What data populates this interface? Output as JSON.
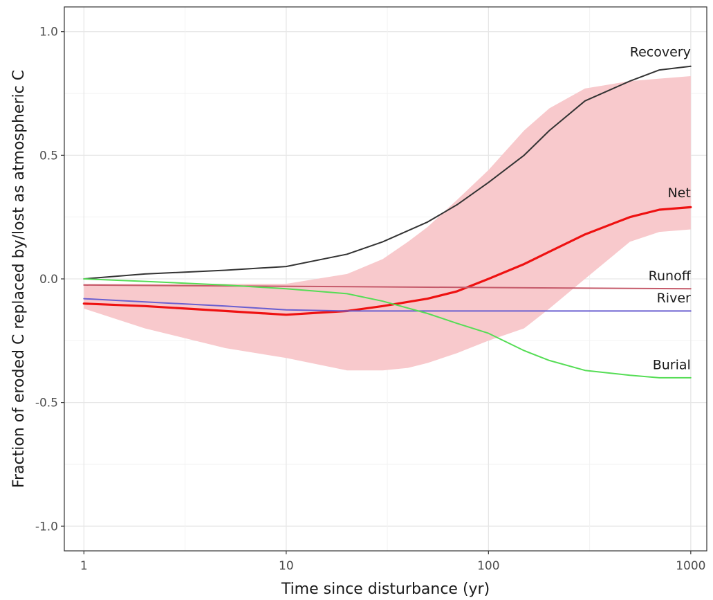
{
  "chart_data": {
    "type": "line",
    "title": "",
    "xlabel": "Time since disturbance (yr)",
    "ylabel": "Fraction of eroded C replaced by/lost as atmospheric C",
    "x_scale": "log10",
    "xlim": [
      0.8,
      1200
    ],
    "ylim": [
      -1.1,
      1.1
    ],
    "x_ticks": [
      1,
      10,
      100,
      1000
    ],
    "x_tick_labels": [
      "1",
      "10",
      "100",
      "1000"
    ],
    "y_ticks": [
      -1.0,
      -0.5,
      0.0,
      0.5,
      1.0
    ],
    "y_tick_labels": [
      "-1.0",
      "-0.5",
      "0.0",
      "0.5",
      "1.0"
    ],
    "grid": true,
    "legend": "none",
    "band": {
      "color": "#f8c9cc",
      "x": [
        1,
        2,
        5,
        10,
        20,
        30,
        40,
        50,
        70,
        100,
        150,
        200,
        300,
        500,
        700,
        1000
      ],
      "upper": [
        -0.02,
        -0.02,
        -0.02,
        -0.02,
        0.02,
        0.08,
        0.15,
        0.21,
        0.32,
        0.44,
        0.6,
        0.69,
        0.77,
        0.8,
        0.81,
        0.82
      ],
      "lower": [
        -0.12,
        -0.2,
        -0.28,
        -0.32,
        -0.37,
        -0.37,
        -0.36,
        -0.34,
        -0.3,
        -0.25,
        -0.2,
        -0.12,
        0.0,
        0.15,
        0.19,
        0.2
      ]
    },
    "series": [
      {
        "name": "Recovery",
        "color": "#333333",
        "x": [
          1,
          2,
          5,
          10,
          20,
          30,
          50,
          70,
          100,
          150,
          200,
          300,
          500,
          700,
          1000
        ],
        "values": [
          0.0,
          0.02,
          0.035,
          0.05,
          0.1,
          0.15,
          0.23,
          0.3,
          0.39,
          0.5,
          0.6,
          0.72,
          0.8,
          0.845,
          0.86
        ]
      },
      {
        "name": "Net",
        "color": "#ee1111",
        "x": [
          1,
          2,
          5,
          10,
          20,
          30,
          50,
          70,
          100,
          150,
          200,
          300,
          500,
          700,
          1000
        ],
        "values": [
          -0.1,
          -0.11,
          -0.13,
          -0.145,
          -0.13,
          -0.11,
          -0.08,
          -0.05,
          0.0,
          0.06,
          0.11,
          0.18,
          0.25,
          0.28,
          0.29
        ]
      },
      {
        "name": "Runoff",
        "color": "#c55a6a",
        "x": [
          1,
          1000
        ],
        "values": [
          -0.025,
          -0.04
        ]
      },
      {
        "name": "River",
        "color": "#6a5fd0",
        "x": [
          1,
          5,
          10,
          20,
          30,
          50,
          1000
        ],
        "values": [
          -0.08,
          -0.11,
          -0.125,
          -0.13,
          -0.13,
          -0.13,
          -0.13
        ]
      },
      {
        "name": "Burial",
        "color": "#55dd55",
        "x": [
          1,
          2,
          5,
          10,
          20,
          30,
          50,
          70,
          100,
          150,
          200,
          300,
          500,
          700,
          1000
        ],
        "values": [
          0.0,
          -0.01,
          -0.025,
          -0.04,
          -0.06,
          -0.09,
          -0.14,
          -0.18,
          -0.22,
          -0.29,
          -0.33,
          -0.37,
          -0.39,
          -0.4,
          -0.4
        ]
      }
    ],
    "labels": [
      {
        "text": "Recovery",
        "x": 1000,
        "y": 0.9
      },
      {
        "text": "Net",
        "x": 1000,
        "y": 0.33
      },
      {
        "text": "Runoff",
        "x": 1000,
        "y": -0.005
      },
      {
        "text": "River",
        "x": 1000,
        "y": -0.095
      },
      {
        "text": "Burial",
        "x": 1000,
        "y": -0.365
      }
    ]
  }
}
